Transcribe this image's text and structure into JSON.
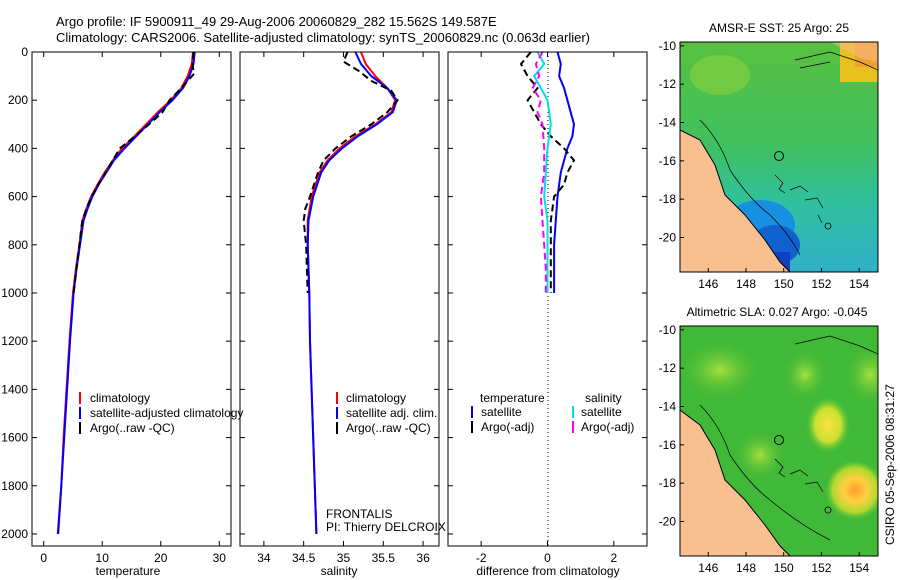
{
  "title": {
    "line1": "Argo profile: IF 5900911_49 29-Aug-2006 20060829_282 15.562S 149.587E",
    "line2": "Climatology: CARS2006. Satellite-adjusted climatology: synTS_20060829.nc (0.063d earlier)"
  },
  "colors": {
    "climatology": "#ff0000",
    "satellite": "#0000ff",
    "argo": "#000000",
    "sal_sat": "#00e0e0",
    "sal_argo": "#ff00ff"
  },
  "footer": {
    "credit": "CSIRO 05-Sep-2006 08:31:27"
  },
  "chart_data": [
    {
      "type": "line",
      "id": "temperature",
      "xlabel": "temperature",
      "xlim": [
        -2,
        32
      ],
      "ylim": [
        0,
        2050
      ],
      "yreversed": true,
      "xticks": [
        0,
        10,
        20,
        30
      ],
      "yticks": [
        0,
        200,
        400,
        600,
        800,
        1000,
        1200,
        1400,
        1600,
        1800,
        2000
      ],
      "legend": [
        "climatology",
        "satellite-adjusted climatology",
        "Argo(..raw -QC)"
      ],
      "series": [
        {
          "name": "climatology",
          "color": "#ff0000",
          "dash": "",
          "points": [
            [
              25.5,
              0
            ],
            [
              25.3,
              50
            ],
            [
              24.6,
              100
            ],
            [
              23.5,
              150
            ],
            [
              21.7,
              200
            ],
            [
              19.5,
              250
            ],
            [
              17.5,
              300
            ],
            [
              15.5,
              350
            ],
            [
              13.4,
              400
            ],
            [
              11.8,
              450
            ],
            [
              10.4,
              500
            ],
            [
              9.2,
              550
            ],
            [
              8.1,
              600
            ],
            [
              7.3,
              650
            ],
            [
              6.6,
              700
            ],
            [
              6.1,
              800
            ],
            [
              5.5,
              900
            ],
            [
              5.0,
              1000
            ],
            [
              4.4,
              1200
            ],
            [
              3.9,
              1400
            ],
            [
              3.4,
              1600
            ],
            [
              3.0,
              1800
            ],
            [
              2.5,
              2000
            ]
          ]
        },
        {
          "name": "satellite",
          "color": "#0000ff",
          "dash": "",
          "points": [
            [
              25.8,
              0
            ],
            [
              25.6,
              50
            ],
            [
              24.9,
              100
            ],
            [
              23.8,
              150
            ],
            [
              22.0,
              200
            ],
            [
              19.8,
              250
            ],
            [
              17.8,
              300
            ],
            [
              15.8,
              350
            ],
            [
              13.8,
              400
            ],
            [
              12.0,
              450
            ],
            [
              10.7,
              500
            ],
            [
              9.4,
              550
            ],
            [
              8.3,
              600
            ],
            [
              7.5,
              650
            ],
            [
              6.8,
              700
            ],
            [
              6.2,
              800
            ],
            [
              5.6,
              900
            ],
            [
              5.1,
              1000
            ],
            [
              4.5,
              1200
            ],
            [
              4.0,
              1400
            ],
            [
              3.5,
              1600
            ],
            [
              3.0,
              1800
            ],
            [
              2.4,
              2000
            ]
          ]
        },
        {
          "name": "Argo(..raw -QC)",
          "color": "#000000",
          "dash": "7,4",
          "points": [
            [
              25.6,
              0
            ],
            [
              25.4,
              50
            ],
            [
              25.7,
              90
            ],
            [
              23.5,
              150
            ],
            [
              21.5,
              200
            ],
            [
              20.3,
              250
            ],
            [
              18.0,
              300
            ],
            [
              15.6,
              350
            ],
            [
              13.0,
              400
            ],
            [
              11.8,
              450
            ],
            [
              10.6,
              500
            ],
            [
              9.3,
              550
            ],
            [
              8.2,
              600
            ],
            [
              7.3,
              650
            ],
            [
              6.6,
              700
            ],
            [
              6.1,
              800
            ],
            [
              5.6,
              900
            ],
            [
              5.1,
              1000
            ]
          ]
        }
      ]
    },
    {
      "type": "line",
      "id": "salinity",
      "xlabel": "salinity",
      "xlim": [
        33.7,
        36.2
      ],
      "ylim": [
        0,
        2050
      ],
      "yreversed": true,
      "xticks": [
        34,
        34.5,
        35,
        35.5,
        36
      ],
      "xtick_labels": [
        "34",
        "34.5",
        "35",
        "35.5",
        "36"
      ],
      "legend": [
        "climatology",
        "satellite adj. clim.",
        "Argo(..raw -QC)"
      ],
      "annotation": {
        "line1": "FRONTALIS",
        "line2": "PI: Thierry DELCROIX"
      },
      "series": [
        {
          "name": "climatology",
          "color": "#ff0000",
          "dash": "",
          "points": [
            [
              35.22,
              0
            ],
            [
              35.28,
              50
            ],
            [
              35.4,
              100
            ],
            [
              35.55,
              150
            ],
            [
              35.65,
              200
            ],
            [
              35.6,
              250
            ],
            [
              35.4,
              300
            ],
            [
              35.15,
              350
            ],
            [
              34.95,
              400
            ],
            [
              34.8,
              450
            ],
            [
              34.7,
              500
            ],
            [
              34.6,
              600
            ],
            [
              34.55,
              700
            ],
            [
              34.55,
              800
            ],
            [
              34.56,
              900
            ],
            [
              34.57,
              1000
            ],
            [
              34.58,
              1200
            ],
            [
              34.6,
              1400
            ],
            [
              34.62,
              1600
            ],
            [
              34.64,
              1800
            ],
            [
              34.66,
              2000
            ]
          ]
        },
        {
          "name": "satellite",
          "color": "#0000ff",
          "dash": "",
          "points": [
            [
              35.15,
              0
            ],
            [
              35.22,
              50
            ],
            [
              35.35,
              100
            ],
            [
              35.55,
              150
            ],
            [
              35.67,
              200
            ],
            [
              35.62,
              250
            ],
            [
              35.42,
              300
            ],
            [
              35.18,
              350
            ],
            [
              34.98,
              400
            ],
            [
              34.82,
              450
            ],
            [
              34.72,
              500
            ],
            [
              34.62,
              600
            ],
            [
              34.56,
              700
            ],
            [
              34.55,
              800
            ],
            [
              34.56,
              900
            ],
            [
              34.57,
              1000
            ],
            [
              34.58,
              1200
            ],
            [
              34.6,
              1400
            ],
            [
              34.62,
              1600
            ],
            [
              34.64,
              1800
            ],
            [
              34.66,
              2000
            ]
          ]
        },
        {
          "name": "Argo(..raw -QC)",
          "color": "#000000",
          "dash": "7,4",
          "points": [
            [
              35.05,
              0
            ],
            [
              35.0,
              40
            ],
            [
              35.2,
              80
            ],
            [
              35.35,
              120
            ],
            [
              35.6,
              160
            ],
            [
              35.68,
              200
            ],
            [
              35.55,
              250
            ],
            [
              35.35,
              300
            ],
            [
              35.1,
              350
            ],
            [
              34.9,
              400
            ],
            [
              34.75,
              450
            ],
            [
              34.68,
              500
            ],
            [
              34.58,
              600
            ],
            [
              34.52,
              650
            ],
            [
              34.5,
              700
            ],
            [
              34.53,
              800
            ],
            [
              34.54,
              900
            ],
            [
              34.55,
              1000
            ]
          ]
        }
      ]
    },
    {
      "type": "line",
      "id": "difference",
      "xlabel": "difference from climatology",
      "xlim": [
        -3,
        3
      ],
      "ylim": [
        0,
        2050
      ],
      "yreversed": true,
      "xticks": [
        -2,
        0,
        2
      ],
      "legend_headers": [
        "temperature",
        "salinity"
      ],
      "legend_left": [
        "satellite",
        "Argo(-adj)"
      ],
      "legend_right": [
        "satellite",
        "Argo(-adj)"
      ],
      "series": [
        {
          "name": "temperature satellite",
          "color": "#0000ff",
          "dash": "",
          "points": [
            [
              0.3,
              0
            ],
            [
              0.4,
              50
            ],
            [
              0.35,
              100
            ],
            [
              0.5,
              150
            ],
            [
              0.6,
              200
            ],
            [
              0.7,
              250
            ],
            [
              0.8,
              300
            ],
            [
              0.75,
              350
            ],
            [
              0.6,
              400
            ],
            [
              0.5,
              450
            ],
            [
              0.4,
              500
            ],
            [
              0.3,
              600
            ],
            [
              0.25,
              700
            ],
            [
              0.2,
              800
            ],
            [
              0.2,
              900
            ],
            [
              0.2,
              1000
            ]
          ]
        },
        {
          "name": "temperature Argo(-adj)",
          "color": "#000000",
          "dash": "7,4",
          "points": [
            [
              -0.5,
              0
            ],
            [
              -0.8,
              50
            ],
            [
              -0.6,
              100
            ],
            [
              -0.3,
              150
            ],
            [
              -0.6,
              200
            ],
            [
              -0.4,
              250
            ],
            [
              -0.2,
              300
            ],
            [
              0.1,
              350
            ],
            [
              0.5,
              400
            ],
            [
              0.8,
              450
            ],
            [
              0.6,
              500
            ],
            [
              0.5,
              550
            ],
            [
              0.2,
              600
            ],
            [
              0.1,
              700
            ],
            [
              0.1,
              800
            ],
            [
              0.1,
              900
            ],
            [
              0.1,
              1000
            ]
          ]
        },
        {
          "name": "salinity satellite",
          "color": "#00e0e0",
          "dash": "",
          "points": [
            [
              -0.3,
              0
            ],
            [
              -0.1,
              50
            ],
            [
              -0.4,
              100
            ],
            [
              -0.2,
              150
            ],
            [
              0.0,
              200
            ],
            [
              0.1,
              300
            ],
            [
              0.0,
              400
            ],
            [
              -0.05,
              500
            ],
            [
              -0.1,
              600
            ],
            [
              0.0,
              700
            ],
            [
              0.0,
              800
            ],
            [
              0.0,
              900
            ],
            [
              0.0,
              1000
            ]
          ]
        },
        {
          "name": "salinity Argo(-adj)",
          "color": "#ff00ff",
          "dash": "7,4",
          "points": [
            [
              -0.15,
              0
            ],
            [
              -0.35,
              50
            ],
            [
              -0.25,
              100
            ],
            [
              -0.45,
              150
            ],
            [
              -0.2,
              200
            ],
            [
              -0.3,
              250
            ],
            [
              -0.15,
              300
            ],
            [
              -0.1,
              400
            ],
            [
              -0.1,
              500
            ],
            [
              -0.2,
              600
            ],
            [
              -0.15,
              700
            ],
            [
              -0.1,
              800
            ],
            [
              -0.05,
              900
            ],
            [
              -0.05,
              1000
            ]
          ]
        }
      ]
    },
    {
      "type": "heatmap",
      "id": "sst-map",
      "title": "AMSR-E SST: 25 Argo: 25",
      "xlim": [
        144.5,
        155
      ],
      "ylim": [
        -21.8,
        -9.8
      ],
      "xticks": [
        146,
        148,
        150,
        152,
        154
      ],
      "yticks": [
        -10,
        -12,
        -14,
        -16,
        -18,
        -20
      ],
      "argo_position": [
        149.587,
        -15.562
      ]
    },
    {
      "type": "heatmap",
      "id": "sla-map",
      "title": "Altimetric SLA: 0.027 Argo: -0.045",
      "xlim": [
        144.5,
        155
      ],
      "ylim": [
        -21.8,
        -9.8
      ],
      "xticks": [
        146,
        148,
        150,
        152,
        154
      ],
      "yticks": [
        -10,
        -12,
        -14,
        -16,
        -18,
        -20
      ],
      "argo_position": [
        149.587,
        -15.562
      ]
    }
  ]
}
